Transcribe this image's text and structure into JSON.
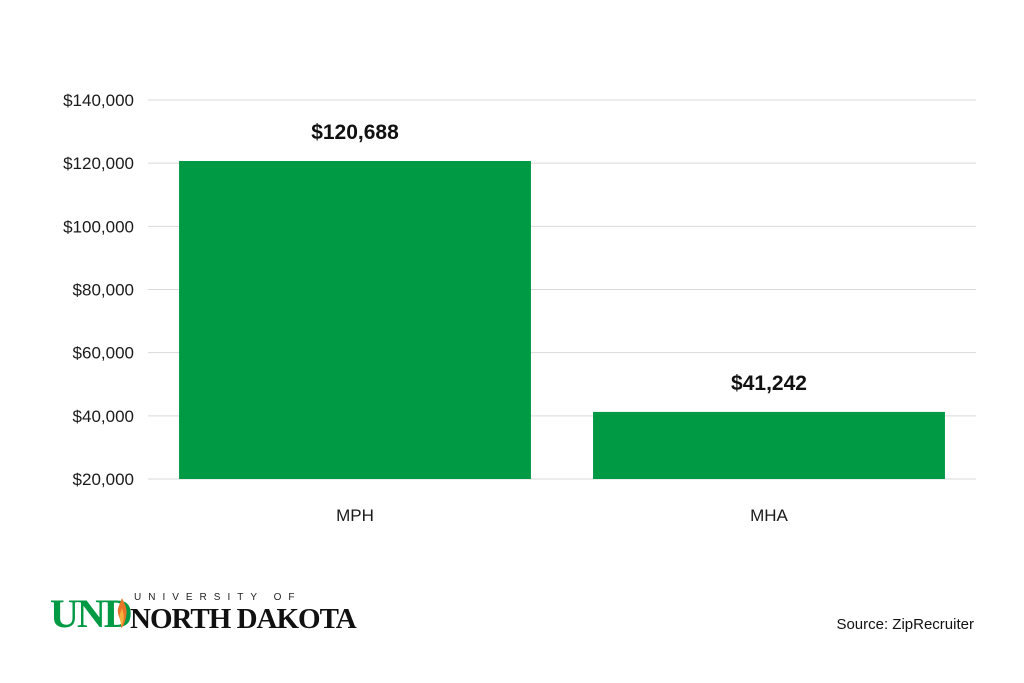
{
  "colors": {
    "bar": "#009a44",
    "grid": "#d9d9d9"
  },
  "chart_data": {
    "type": "bar",
    "categories": [
      "MPH",
      "MHA"
    ],
    "values": [
      120688,
      41242
    ],
    "data_labels": [
      "$120,688",
      "$41,242"
    ],
    "ylim": [
      20000,
      140000
    ],
    "yticks": [
      20000,
      40000,
      60000,
      80000,
      100000,
      120000,
      140000
    ],
    "ytick_labels": [
      "$20,000",
      "$40,000",
      "$60,000",
      "$80,000",
      "$100,000",
      "$120,000",
      "$140,000"
    ],
    "grid": true,
    "title": "",
    "xlabel": "",
    "ylabel": ""
  },
  "branding": {
    "logo_text_top": "UNIVERSITY OF",
    "logo_text_main": "NORTH DAKOTA",
    "logo_mark": "UND"
  },
  "source": "Source: ZipRecruiter"
}
